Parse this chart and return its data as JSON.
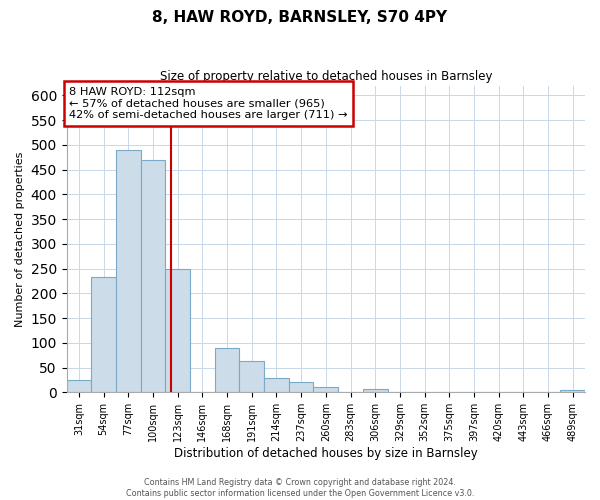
{
  "title": "8, HAW ROYD, BARNSLEY, S70 4PY",
  "subtitle": "Size of property relative to detached houses in Barnsley",
  "xlabel": "Distribution of detached houses by size in Barnsley",
  "ylabel": "Number of detached properties",
  "bar_labels": [
    "31sqm",
    "54sqm",
    "77sqm",
    "100sqm",
    "123sqm",
    "146sqm",
    "168sqm",
    "191sqm",
    "214sqm",
    "237sqm",
    "260sqm",
    "283sqm",
    "306sqm",
    "329sqm",
    "352sqm",
    "375sqm",
    "397sqm",
    "420sqm",
    "443sqm",
    "466sqm",
    "489sqm"
  ],
  "bar_values": [
    25,
    233,
    490,
    470,
    250,
    0,
    90,
    63,
    30,
    20,
    11,
    0,
    7,
    0,
    0,
    0,
    0,
    0,
    0,
    0,
    5
  ],
  "bar_color": "#ccdce8",
  "bar_edge_color": "#7aaac8",
  "vline_x": 3.72,
  "vline_color": "#cc0000",
  "annotation_text": "8 HAW ROYD: 112sqm\n← 57% of detached houses are smaller (965)\n42% of semi-detached houses are larger (711) →",
  "ylim": [
    0,
    620
  ],
  "yticks": [
    0,
    50,
    100,
    150,
    200,
    250,
    300,
    350,
    400,
    450,
    500,
    550,
    600
  ],
  "footer1": "Contains HM Land Registry data © Crown copyright and database right 2024.",
  "footer2": "Contains public sector information licensed under the Open Government Licence v3.0.",
  "background_color": "#ffffff",
  "grid_color": "#c8d8e8"
}
